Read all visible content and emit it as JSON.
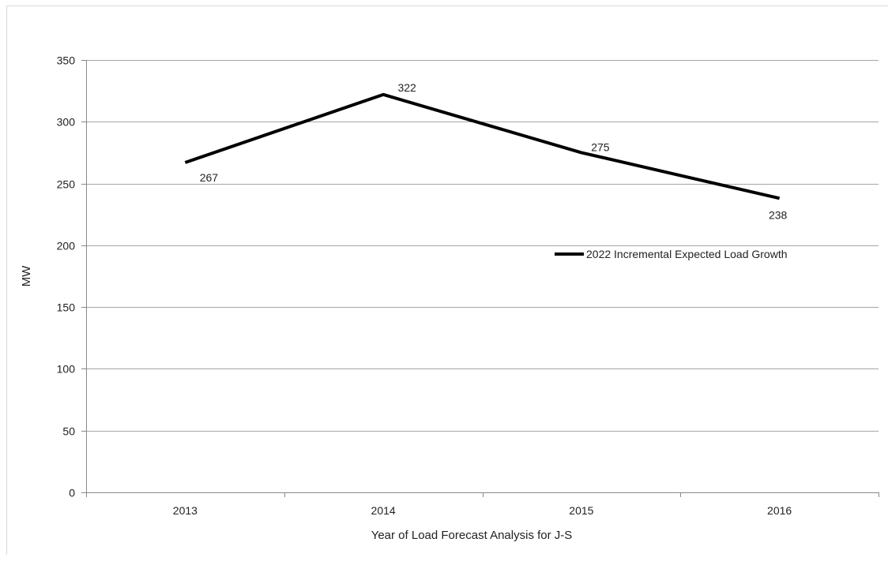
{
  "chart_data": {
    "type": "line",
    "title": "",
    "xlabel": "Year of Load Forecast Analysis for J-S",
    "ylabel": "MW",
    "categories": [
      "2013",
      "2014",
      "2015",
      "2016"
    ],
    "series": [
      {
        "name": "2022 Incremental Expected Load Growth",
        "values": [
          267,
          322,
          275,
          238
        ],
        "color": "#000000"
      }
    ],
    "data_labels": [
      "267",
      "322",
      "275",
      "238"
    ],
    "ylim": [
      0,
      350
    ],
    "yticks": [
      0,
      50,
      100,
      150,
      200,
      250,
      300,
      350
    ],
    "ytick_labels": [
      "0",
      "50",
      "100",
      "150",
      "200",
      "250",
      "300",
      "350"
    ],
    "grid": true,
    "legend_position": "right"
  },
  "colors": {
    "gridline": "#a6a6a6",
    "axis": "#888888",
    "series_line": "#000000",
    "frame": "#d9d9d9"
  }
}
